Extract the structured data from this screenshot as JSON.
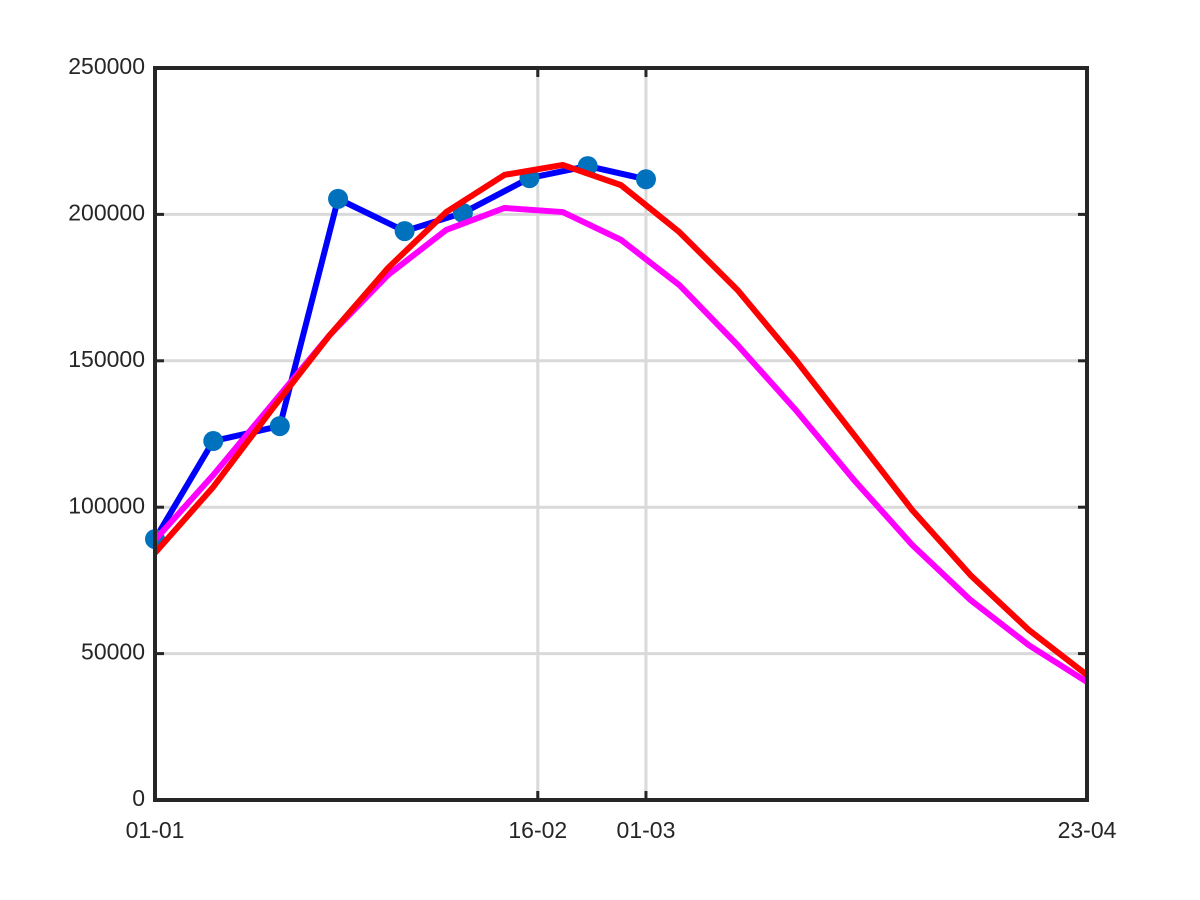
{
  "chart_data": {
    "type": "line",
    "xlim": [
      "01-01",
      "23-04"
    ],
    "xticks": [
      "01-01",
      "16-02",
      "01-03",
      "23-04"
    ],
    "ylim": [
      0,
      250000
    ],
    "yticks": [
      0,
      50000,
      100000,
      150000,
      200000,
      250000
    ],
    "grid": true,
    "series": [
      {
        "color": "#0000ff",
        "marker_color": "#0072bd",
        "x": [
          "01-01",
          "08-01",
          "16-01",
          "23-01",
          "31-01",
          "07-02",
          "15-02",
          "22-02",
          "01-03"
        ],
        "values": [
          89100,
          122600,
          127700,
          205300,
          194300,
          200500,
          212400,
          216500,
          212000
        ]
      },
      {
        "color": "#ff00ff",
        "x": [
          "01-01",
          "08-01",
          "15-01",
          "22-01",
          "29-01",
          "05-02",
          "12-02",
          "19-02",
          "26-02",
          "05-03",
          "12-03",
          "19-03",
          "26-03",
          "02-04",
          "09-04",
          "16-04",
          "23-04"
        ],
        "values": [
          88800,
          111000,
          134900,
          158800,
          179300,
          194700,
          202200,
          200800,
          191300,
          175900,
          155400,
          133200,
          109300,
          87100,
          68300,
          52900,
          40300
        ]
      },
      {
        "color": "#ff0000",
        "x": [
          "01-01",
          "08-01",
          "15-01",
          "22-01",
          "29-01",
          "05-02",
          "12-02",
          "19-02",
          "26-02",
          "05-03",
          "12-03",
          "19-03",
          "26-03",
          "02-04",
          "09-04",
          "16-04",
          "23-04"
        ],
        "values": [
          84400,
          106900,
          133200,
          158800,
          181700,
          200800,
          213500,
          216900,
          210000,
          194000,
          174200,
          150300,
          124700,
          99000,
          76800,
          58100,
          42700
        ]
      }
    ]
  }
}
